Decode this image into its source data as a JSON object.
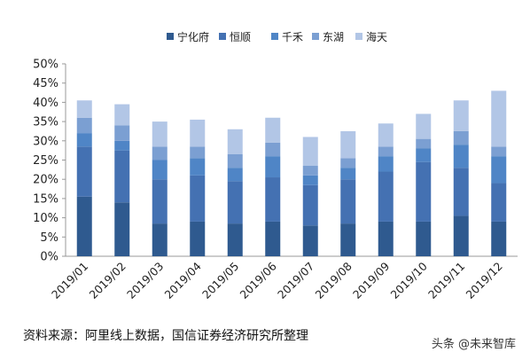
{
  "chart_data": {
    "type": "bar",
    "stacked": true,
    "categories": [
      "2019/01",
      "2019/02",
      "2019/03",
      "2019/04",
      "2019/05",
      "2019/06",
      "2019/07",
      "2019/08",
      "2019/09",
      "2019/10",
      "2019/11",
      "2019/12"
    ],
    "series": [
      {
        "name": "宁化府",
        "color": "#2f5a8f",
        "values": [
          15.5,
          14.0,
          8.5,
          9.0,
          8.5,
          9.0,
          8.0,
          8.5,
          9.0,
          9.0,
          10.5,
          9.0
        ]
      },
      {
        "name": "恒顺",
        "color": "#4471b2",
        "values": [
          13.0,
          13.5,
          11.5,
          12.0,
          11.0,
          11.5,
          10.5,
          11.5,
          13.0,
          15.5,
          12.5,
          10.0
        ]
      },
      {
        "name": "千禾",
        "color": "#4f85c6",
        "values": [
          3.5,
          2.5,
          5.0,
          4.5,
          3.5,
          5.5,
          2.5,
          3.0,
          4.0,
          3.5,
          6.0,
          7.0
        ]
      },
      {
        "name": "东湖",
        "color": "#7b9fd2",
        "values": [
          4.0,
          4.0,
          3.5,
          3.0,
          3.5,
          3.5,
          2.5,
          2.5,
          2.5,
          2.5,
          3.5,
          2.5
        ]
      },
      {
        "name": "海天",
        "color": "#b2c6e6",
        "values": [
          4.5,
          5.5,
          6.5,
          7.0,
          6.5,
          6.5,
          7.5,
          7.0,
          6.0,
          6.5,
          8.0,
          14.5
        ]
      }
    ],
    "y_ticks": [
      "0%",
      "5%",
      "10%",
      "15%",
      "20%",
      "25%",
      "30%",
      "35%",
      "40%",
      "45%",
      "50%"
    ],
    "ylim": [
      0,
      50
    ],
    "grid": false,
    "legend_position": "top-center"
  },
  "footer": {
    "source": "资料来源：阿里线上数据，国信证券经济研究所整理",
    "watermark": "头条 @未来智库"
  }
}
